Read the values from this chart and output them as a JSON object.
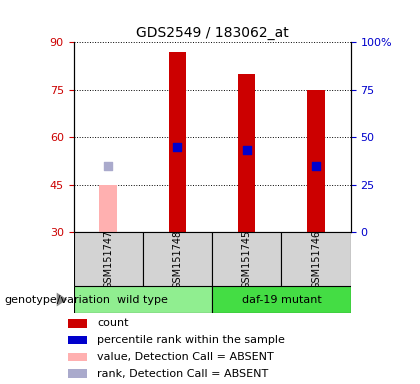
{
  "title": "GDS2549 / 183062_at",
  "samples": [
    "GSM151747",
    "GSM151748",
    "GSM151745",
    "GSM151746"
  ],
  "bar_bottom": 30,
  "count_values": [
    null,
    87,
    80,
    75
  ],
  "count_color": "#cc0000",
  "absent_value_bars": [
    45,
    null,
    null,
    null
  ],
  "absent_value_color": "#ffb0b0",
  "percentile_values": [
    null,
    57,
    56,
    51
  ],
  "percentile_color": "#0000cc",
  "absent_rank_values": [
    51,
    null,
    null,
    null
  ],
  "absent_rank_color": "#aaaacc",
  "ylim_left": [
    30,
    90
  ],
  "ylim_right": [
    0,
    100
  ],
  "yticks_left": [
    30,
    45,
    60,
    75,
    90
  ],
  "yticks_right": [
    0,
    25,
    50,
    75,
    100
  ],
  "yticklabels_right": [
    "0",
    "25",
    "50",
    "75",
    "100%"
  ],
  "bar_width": 0.25,
  "dot_size": 40,
  "legend_items": [
    {
      "label": "count",
      "color": "#cc0000"
    },
    {
      "label": "percentile rank within the sample",
      "color": "#0000cc"
    },
    {
      "label": "value, Detection Call = ABSENT",
      "color": "#ffb0b0"
    },
    {
      "label": "rank, Detection Call = ABSENT",
      "color": "#aaaacc"
    }
  ],
  "group_label": "genotype/variation",
  "left_tick_color": "#cc0000",
  "right_tick_color": "#0000cc",
  "groups_info": [
    {
      "label": "wild type",
      "start": 0,
      "end": 2,
      "color": "#90ee90"
    },
    {
      "label": "daf-19 mutant",
      "start": 2,
      "end": 4,
      "color": "#44dd44"
    }
  ]
}
